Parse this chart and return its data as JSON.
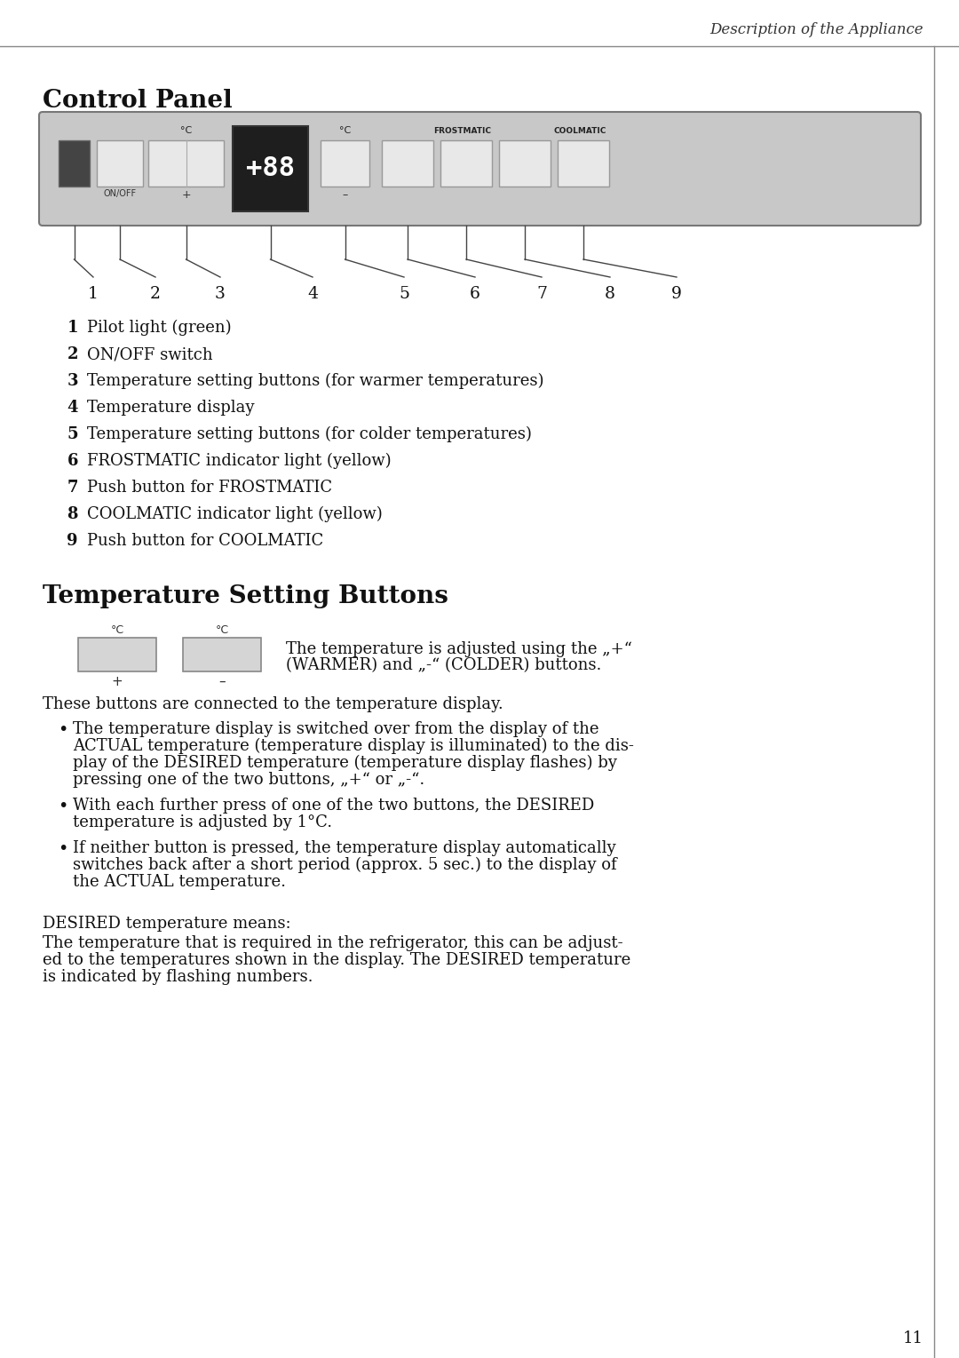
{
  "page_header": "Description of the Appliance",
  "section1_title": "Control Panel",
  "section2_title": "Temperature Setting Buttons",
  "background_color": "#ffffff",
  "items": [
    {
      "num": "1",
      "text": "Pilot light (green)"
    },
    {
      "num": "2",
      "text": "ON/OFF switch"
    },
    {
      "num": "3",
      "text": "Temperature setting buttons (for warmer temperatures)"
    },
    {
      "num": "4",
      "text": "Temperature display"
    },
    {
      "num": "5",
      "text": "Temperature setting buttons (for colder temperatures)"
    },
    {
      "num": "6",
      "text": "FROSTMATIC indicator light (yellow)"
    },
    {
      "num": "7",
      "text": "Push button for FROSTMATIC"
    },
    {
      "num": "8",
      "text": "COOLMATIC indicator light (yellow)"
    },
    {
      "num": "9",
      "text": "Push button for COOLMATIC"
    }
  ],
  "tsb_line1": "The temperature is adjusted using the „+“",
  "tsb_line2": "(WARMER) and „-“ (COLDER) buttons.",
  "tsb_para": "These buttons are connected to the temperature display.",
  "bullet1_lines": [
    "The temperature display is switched over from the display of the",
    "ACTUAL temperature (temperature display is illuminated) to the dis-",
    "play of the DESIRED temperature (temperature display flashes) by",
    "pressing one of the two buttons, „+“ or „-“."
  ],
  "bullet2_lines": [
    "With each further press of one of the two buttons, the DESIRED",
    "temperature is adjusted by 1°C."
  ],
  "bullet3_lines": [
    "If neither button is pressed, the temperature display automatically",
    "switches back after a short period (approx. 5 sec.) to the display of",
    "the ACTUAL temperature."
  ],
  "desired_header": "DESIRED temperature means:",
  "desired_body_lines": [
    "The temperature that is required in the refrigerator, this can be adjust-",
    "ed to the temperatures shown in the display. The DESIRED temperature",
    "is indicated by flashing numbers."
  ],
  "page_number": "11"
}
